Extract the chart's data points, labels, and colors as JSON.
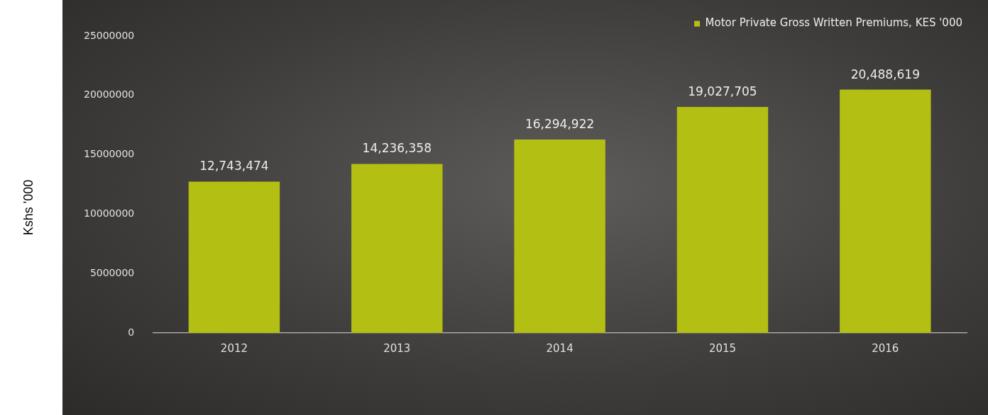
{
  "chart_data": {
    "type": "bar",
    "ylabel": "Kshs '000",
    "categories": [
      "2012",
      "2013",
      "2014",
      "2015",
      "2016"
    ],
    "series": [
      {
        "name": "Motor Private Gross Written Premiums, KES '000",
        "color": "#b3bf12",
        "values": [
          12743474,
          14236358,
          16294922,
          19027705,
          20488619
        ],
        "value_labels": [
          "12,743,474",
          "14,236,358",
          "16,294,922",
          "19,027,705",
          "20,488,619"
        ]
      }
    ],
    "ylim": [
      0,
      25000000
    ],
    "yticks": [
      0,
      5000000,
      10000000,
      15000000,
      20000000,
      25000000
    ],
    "grid": false,
    "legend": "top right"
  }
}
